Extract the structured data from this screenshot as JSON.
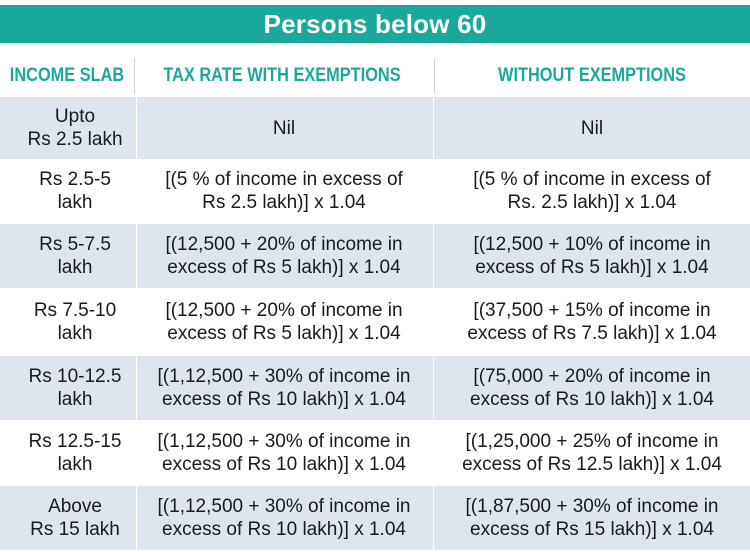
{
  "title": "Persons below 60",
  "headers": {
    "income_slab": "INCOME SLAB",
    "with_exemptions": "TAX RATE WITH EXEMPTIONS",
    "without_exemptions": "WITHOUT EXEMPTIONS"
  },
  "rows": [
    {
      "slab": [
        "Upto",
        "Rs 2.5 lakh"
      ],
      "with": [
        "Nil"
      ],
      "without": [
        "Nil"
      ]
    },
    {
      "slab": [
        "Rs 2.5-5",
        "lakh"
      ],
      "with": [
        "[(5 % of income in excess of",
        "Rs 2.5 lakh)] x 1.04"
      ],
      "without": [
        "[(5 % of income in excess of",
        "Rs. 2.5 lakh)] x 1.04"
      ]
    },
    {
      "slab": [
        "Rs 5-7.5",
        "lakh"
      ],
      "with": [
        "[(12,500 + 20% of income in",
        "excess of Rs 5 lakh)] x 1.04"
      ],
      "without": [
        "[(12,500 + 10% of income in",
        "excess of Rs 5 lakh)] x 1.04"
      ]
    },
    {
      "slab": [
        "Rs 7.5-10",
        "lakh"
      ],
      "with": [
        "[(12,500 + 20% of income in",
        "excess of Rs 5 lakh)] x 1.04"
      ],
      "without": [
        "[(37,500 + 15% of income in",
        "excess of Rs 7.5 lakh)] x 1.04"
      ]
    },
    {
      "slab": [
        "Rs 10-12.5",
        "lakh"
      ],
      "with": [
        "[(1,12,500 + 30% of income in",
        "excess of Rs 10 lakh)] x 1.04"
      ],
      "without": [
        "[(75,000 + 20% of income in",
        "excess of Rs 10 lakh)] x 1.04"
      ]
    },
    {
      "slab": [
        "Rs 12.5-15",
        "lakh"
      ],
      "with": [
        "[(1,12,500 + 30% of income in",
        "excess of Rs 10 lakh)] x 1.04"
      ],
      "without": [
        "[(1,25,000 + 25% of income in",
        "excess of Rs 12.5 lakh)] x 1.04"
      ]
    },
    {
      "slab": [
        "Above",
        "Rs 15 lakh"
      ],
      "with": [
        "[(1,12,500 + 30% of income in",
        "excess of Rs 10 lakh)] x 1.04"
      ],
      "without": [
        "[(1,87,500 + 30% of income in",
        "excess of Rs 15 lakh)] x 1.04"
      ]
    }
  ]
}
